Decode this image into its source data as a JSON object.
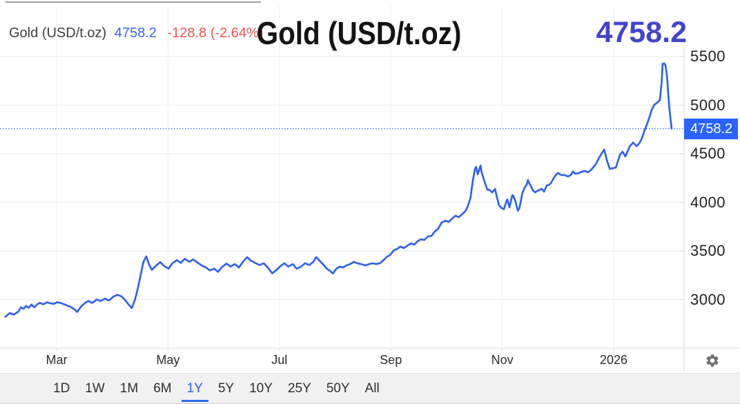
{
  "header": {
    "legend_instrument": "Gold (USD/t.oz)",
    "legend_price": "4758.2",
    "legend_change": "-128.8 (-2.64%)",
    "title": "Gold (USD/t.oz)",
    "big_price": "4758.2"
  },
  "price_axis": {
    "tag_text": "4758.2",
    "tag_value": 4758.2,
    "tick_labels": [
      "5500",
      "5000",
      "4500",
      "4000",
      "3500",
      "3000"
    ]
  },
  "toolbar": {
    "ranges": [
      {
        "label": "1D",
        "active": false
      },
      {
        "label": "1W",
        "active": false
      },
      {
        "label": "1M",
        "active": false
      },
      {
        "label": "6M",
        "active": false
      },
      {
        "label": "1Y",
        "active": true
      },
      {
        "label": "5Y",
        "active": false
      },
      {
        "label": "10Y",
        "active": false
      },
      {
        "label": "25Y",
        "active": false
      },
      {
        "label": "50Y",
        "active": false
      },
      {
        "label": "All",
        "active": false
      }
    ]
  },
  "icons": {
    "settings": "gear-icon"
  },
  "colors": {
    "line": "#2e62ea",
    "price_tag_bg": "#2962ff",
    "big_price": "#4243ce",
    "legend_price": "#3465e9",
    "legend_change": "#f0544f",
    "grid_h": "#eceef0",
    "grid_v": "#f2f5f7",
    "axis_border": "#e3e5e8",
    "dotted_line": "#2962ff"
  },
  "chart_data": {
    "type": "line",
    "title": "Gold (USD/t.oz)",
    "x": {
      "note": "t = months since Feb 2025 (0 = Feb 2025, 12 = Feb 2026)",
      "ticks": [
        {
          "label": "Mar",
          "t": 1
        },
        {
          "label": "May",
          "t": 3
        },
        {
          "label": "Jul",
          "t": 5
        },
        {
          "label": "Sep",
          "t": 7
        },
        {
          "label": "Nov",
          "t": 9
        },
        {
          "label": "2026",
          "t": 11
        }
      ],
      "range": [
        0.05,
        12.1
      ]
    },
    "y": {
      "ticks": [
        5500,
        5000,
        4500,
        4000,
        3500,
        3000
      ],
      "range": [
        2500,
        5870
      ],
      "side": "right",
      "grid": true
    },
    "last_price_line": 4758.2,
    "series": [
      {
        "name": "Gold (USD/t.oz)",
        "unit": "USD/t.oz",
        "last": 4758.2,
        "change": -128.8,
        "change_pct": -2.64,
        "points": [
          [
            0.08,
            2823
          ],
          [
            0.16,
            2862
          ],
          [
            0.23,
            2845
          ],
          [
            0.31,
            2875
          ],
          [
            0.36,
            2920
          ],
          [
            0.41,
            2905
          ],
          [
            0.45,
            2935
          ],
          [
            0.5,
            2916
          ],
          [
            0.55,
            2948
          ],
          [
            0.6,
            2920
          ],
          [
            0.65,
            2950
          ],
          [
            0.7,
            2966
          ],
          [
            0.76,
            2950
          ],
          [
            0.83,
            2972
          ],
          [
            0.89,
            2962
          ],
          [
            0.95,
            2955
          ],
          [
            1.01,
            2972
          ],
          [
            1.07,
            2965
          ],
          [
            1.14,
            2950
          ],
          [
            1.2,
            2936
          ],
          [
            1.26,
            2922
          ],
          [
            1.32,
            2900
          ],
          [
            1.37,
            2872
          ],
          [
            1.43,
            2922
          ],
          [
            1.5,
            2960
          ],
          [
            1.57,
            2985
          ],
          [
            1.64,
            2965
          ],
          [
            1.72,
            3000
          ],
          [
            1.79,
            2985
          ],
          [
            1.87,
            3010
          ],
          [
            1.94,
            2990
          ],
          [
            2.02,
            3030
          ],
          [
            2.09,
            3048
          ],
          [
            2.16,
            3035
          ],
          [
            2.23,
            2995
          ],
          [
            2.29,
            2950
          ],
          [
            2.35,
            2912
          ],
          [
            2.41,
            3005
          ],
          [
            2.46,
            3120
          ],
          [
            2.51,
            3260
          ],
          [
            2.56,
            3390
          ],
          [
            2.61,
            3443
          ],
          [
            2.66,
            3360
          ],
          [
            2.71,
            3305
          ],
          [
            2.78,
            3345
          ],
          [
            2.86,
            3385
          ],
          [
            2.93,
            3345
          ],
          [
            3.01,
            3318
          ],
          [
            3.08,
            3375
          ],
          [
            3.16,
            3405
          ],
          [
            3.23,
            3378
          ],
          [
            3.3,
            3420
          ],
          [
            3.38,
            3388
          ],
          [
            3.45,
            3412
          ],
          [
            3.53,
            3380
          ],
          [
            3.6,
            3352
          ],
          [
            3.68,
            3330
          ],
          [
            3.75,
            3300
          ],
          [
            3.83,
            3318
          ],
          [
            3.9,
            3285
          ],
          [
            3.97,
            3335
          ],
          [
            4.05,
            3370
          ],
          [
            4.12,
            3340
          ],
          [
            4.2,
            3365
          ],
          [
            4.27,
            3330
          ],
          [
            4.35,
            3390
          ],
          [
            4.42,
            3436
          ],
          [
            4.49,
            3400
          ],
          [
            4.57,
            3375
          ],
          [
            4.64,
            3355
          ],
          [
            4.72,
            3373
          ],
          [
            4.79,
            3330
          ],
          [
            4.87,
            3270
          ],
          [
            4.94,
            3301
          ],
          [
            5.02,
            3345
          ],
          [
            5.09,
            3373
          ],
          [
            5.16,
            3340
          ],
          [
            5.24,
            3365
          ],
          [
            5.31,
            3318
          ],
          [
            5.39,
            3340
          ],
          [
            5.46,
            3373
          ],
          [
            5.54,
            3355
          ],
          [
            5.61,
            3390
          ],
          [
            5.66,
            3436
          ],
          [
            5.72,
            3400
          ],
          [
            5.78,
            3365
          ],
          [
            5.85,
            3318
          ],
          [
            5.91,
            3295
          ],
          [
            5.96,
            3268
          ],
          [
            6.02,
            3316
          ],
          [
            6.08,
            3338
          ],
          [
            6.14,
            3330
          ],
          [
            6.2,
            3351
          ],
          [
            6.27,
            3365
          ],
          [
            6.34,
            3387
          ],
          [
            6.4,
            3373
          ],
          [
            6.46,
            3365
          ],
          [
            6.55,
            3351
          ],
          [
            6.61,
            3365
          ],
          [
            6.68,
            3373
          ],
          [
            6.74,
            3365
          ],
          [
            6.8,
            3373
          ],
          [
            6.86,
            3400
          ],
          [
            6.92,
            3436
          ],
          [
            6.99,
            3460
          ],
          [
            7.05,
            3505
          ],
          [
            7.11,
            3520
          ],
          [
            7.17,
            3545
          ],
          [
            7.23,
            3530
          ],
          [
            7.29,
            3550
          ],
          [
            7.36,
            3578
          ],
          [
            7.42,
            3565
          ],
          [
            7.48,
            3600
          ],
          [
            7.54,
            3620
          ],
          [
            7.6,
            3612
          ],
          [
            7.67,
            3650
          ],
          [
            7.73,
            3655
          ],
          [
            7.79,
            3700
          ],
          [
            7.85,
            3730
          ],
          [
            7.91,
            3790
          ],
          [
            7.98,
            3812
          ],
          [
            8.04,
            3798
          ],
          [
            8.1,
            3833
          ],
          [
            8.16,
            3862
          ],
          [
            8.22,
            3848
          ],
          [
            8.29,
            3883
          ],
          [
            8.35,
            3918
          ],
          [
            8.39,
            3975
          ],
          [
            8.43,
            4046
          ],
          [
            8.47,
            4216
          ],
          [
            8.51,
            4344
          ],
          [
            8.53,
            4365
          ],
          [
            8.56,
            4288
          ],
          [
            8.61,
            4379
          ],
          [
            8.63,
            4309
          ],
          [
            8.68,
            4216
          ],
          [
            8.73,
            4131
          ],
          [
            8.78,
            4125
          ],
          [
            8.82,
            4102
          ],
          [
            8.87,
            4137
          ],
          [
            8.91,
            4043
          ],
          [
            8.94,
            3972
          ],
          [
            8.99,
            3940
          ],
          [
            9.03,
            3930
          ],
          [
            9.07,
            4000
          ],
          [
            9.09,
            4030
          ],
          [
            9.13,
            3948
          ],
          [
            9.18,
            4074
          ],
          [
            9.2,
            4067
          ],
          [
            9.24,
            4003
          ],
          [
            9.28,
            3913
          ],
          [
            9.31,
            3945
          ],
          [
            9.36,
            4096
          ],
          [
            9.4,
            4150
          ],
          [
            9.44,
            4184
          ],
          [
            9.46,
            4230
          ],
          [
            9.5,
            4181
          ],
          [
            9.55,
            4124
          ],
          [
            9.59,
            4103
          ],
          [
            9.65,
            4124
          ],
          [
            9.71,
            4138
          ],
          [
            9.75,
            4110
          ],
          [
            9.8,
            4174
          ],
          [
            9.84,
            4181
          ],
          [
            9.87,
            4195
          ],
          [
            9.92,
            4245
          ],
          [
            9.96,
            4280
          ],
          [
            10.0,
            4302
          ],
          [
            10.06,
            4281
          ],
          [
            10.12,
            4281
          ],
          [
            10.18,
            4266
          ],
          [
            10.23,
            4281
          ],
          [
            10.27,
            4316
          ],
          [
            10.31,
            4294
          ],
          [
            10.37,
            4300
          ],
          [
            10.43,
            4316
          ],
          [
            10.49,
            4323
          ],
          [
            10.54,
            4309
          ],
          [
            10.6,
            4337
          ],
          [
            10.68,
            4393
          ],
          [
            10.73,
            4450
          ],
          [
            10.78,
            4500
          ],
          [
            10.83,
            4542
          ],
          [
            10.88,
            4429
          ],
          [
            10.93,
            4345
          ],
          [
            10.99,
            4352
          ],
          [
            11.04,
            4358
          ],
          [
            11.11,
            4486
          ],
          [
            11.16,
            4521
          ],
          [
            11.21,
            4472
          ],
          [
            11.29,
            4578
          ],
          [
            11.35,
            4614
          ],
          [
            11.41,
            4578
          ],
          [
            11.46,
            4607
          ],
          [
            11.51,
            4663
          ],
          [
            11.55,
            4734
          ],
          [
            11.6,
            4805
          ],
          [
            11.65,
            4890
          ],
          [
            11.68,
            4947
          ],
          [
            11.73,
            5004
          ],
          [
            11.78,
            5025
          ],
          [
            11.83,
            5053
          ],
          [
            11.86,
            5230
          ],
          [
            11.88,
            5425
          ],
          [
            11.91,
            5429
          ],
          [
            11.93,
            5408
          ],
          [
            11.96,
            5280
          ],
          [
            11.98,
            5110
          ],
          [
            12.0,
            4968
          ],
          [
            12.04,
            4758.2
          ]
        ]
      }
    ]
  }
}
